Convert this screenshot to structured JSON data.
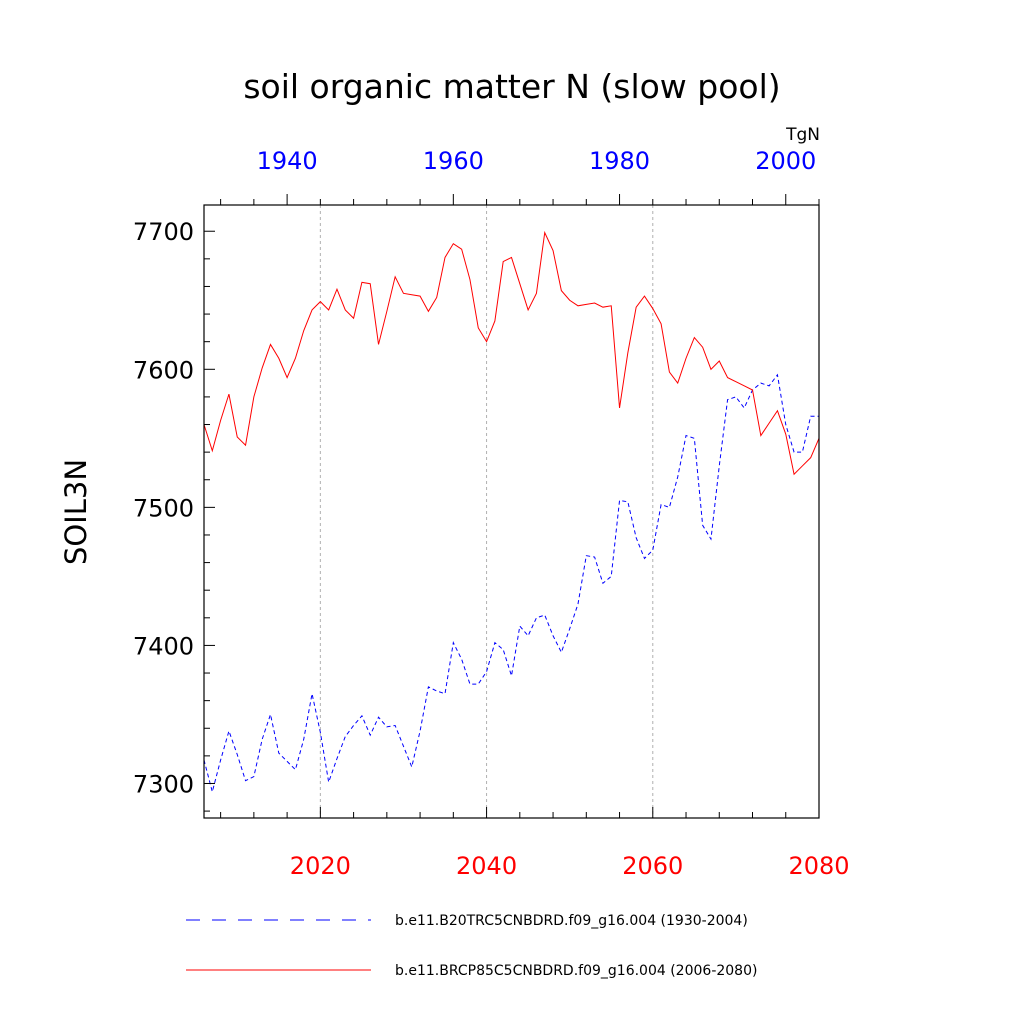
{
  "chart_data": {
    "type": "line",
    "title": "soil organic matter N (slow pool)",
    "ylabel": "SOIL3N",
    "units": "TgN",
    "ylim": [
      7275,
      7719
    ],
    "yticks": [
      7300,
      7400,
      7500,
      7600,
      7700
    ],
    "bottom_axis": {
      "range": [
        2006,
        2080
      ],
      "ticks": [
        2020,
        2040,
        2060,
        2080
      ],
      "color": "#ff0000"
    },
    "top_axis": {
      "range": [
        1930,
        2004
      ],
      "ticks": [
        1940,
        1960,
        1980,
        2000
      ],
      "color": "#0000ff"
    },
    "gridlines_x": [
      2020,
      2040,
      2060
    ],
    "series": [
      {
        "name": "b.e11.B20TRC5CNBDRD.f09_g16.004 (1930-2004)",
        "axis": "top",
        "color": "#0000ff",
        "dash": "dashed",
        "x": [
          1930,
          1931,
          1932,
          1933,
          1934,
          1935,
          1936,
          1937,
          1938,
          1939,
          1940,
          1941,
          1942,
          1943,
          1944,
          1945,
          1946,
          1947,
          1948,
          1949,
          1950,
          1951,
          1952,
          1953,
          1954,
          1955,
          1956,
          1957,
          1958,
          1959,
          1960,
          1961,
          1962,
          1963,
          1964,
          1965,
          1966,
          1967,
          1968,
          1969,
          1970,
          1971,
          1972,
          1973,
          1974,
          1975,
          1976,
          1977,
          1978,
          1979,
          1980,
          1981,
          1982,
          1983,
          1984,
          1985,
          1986,
          1987,
          1988,
          1989,
          1990,
          1991,
          1992,
          1993,
          1994,
          1995,
          1996,
          1997,
          1998,
          1999,
          2000,
          2001,
          2002,
          2003,
          2004
        ],
        "values": [
          7317,
          7294,
          7317,
          7338,
          7321,
          7302,
          7305,
          7332,
          7350,
          7322,
          7316,
          7310,
          7332,
          7365,
          7337,
          7301,
          7318,
          7334,
          7342,
          7349,
          7335,
          7348,
          7341,
          7342,
          7327,
          7312,
          7338,
          7370,
          7367,
          7365,
          7402,
          7390,
          7372,
          7372,
          7381,
          7402,
          7397,
          7378,
          7414,
          7407,
          7420,
          7422,
          7407,
          7395,
          7412,
          7430,
          7465,
          7464,
          7445,
          7450,
          7505,
          7504,
          7478,
          7463,
          7469,
          7502,
          7500,
          7522,
          7552,
          7550,
          7487,
          7477,
          7530,
          7578,
          7580,
          7572,
          7585,
          7590,
          7588,
          7596,
          7560,
          7540,
          7540,
          7566,
          7566
        ]
      },
      {
        "name": "b.e11.BRCP85C5CNBDRD.f09_g16.004 (2006-2080)",
        "axis": "bottom",
        "color": "#ff0000",
        "dash": "solid",
        "x": [
          2006,
          2007,
          2008,
          2009,
          2010,
          2011,
          2012,
          2013,
          2014,
          2015,
          2016,
          2017,
          2018,
          2019,
          2020,
          2021,
          2022,
          2023,
          2024,
          2025,
          2026,
          2027,
          2028,
          2029,
          2030,
          2031,
          2032,
          2033,
          2034,
          2035,
          2036,
          2037,
          2038,
          2039,
          2040,
          2041,
          2042,
          2043,
          2044,
          2045,
          2046,
          2047,
          2048,
          2049,
          2050,
          2051,
          2052,
          2053,
          2054,
          2055,
          2056,
          2057,
          2058,
          2059,
          2060,
          2061,
          2062,
          2063,
          2064,
          2065,
          2066,
          2067,
          2068,
          2069,
          2070,
          2071,
          2072,
          2073,
          2074,
          2075,
          2076,
          2077,
          2078,
          2079,
          2080
        ],
        "values": [
          7560,
          7541,
          7563,
          7582,
          7551,
          7545,
          7580,
          7601,
          7618,
          7608,
          7594,
          7608,
          7628,
          7643,
          7649,
          7643,
          7658,
          7643,
          7637,
          7663,
          7662,
          7618,
          7642,
          7667,
          7655,
          7654,
          7653,
          7642,
          7652,
          7681,
          7691,
          7687,
          7665,
          7630,
          7620,
          7635,
          7678,
          7681,
          7662,
          7643,
          7655,
          7699,
          7686,
          7657,
          7650,
          7646,
          7647,
          7648,
          7645,
          7646,
          7572,
          7612,
          7645,
          7653,
          7644,
          7633,
          7598,
          7590,
          7608,
          7623,
          7616,
          7600,
          7606,
          7594,
          7591,
          7588,
          7585,
          7552,
          7561,
          7570,
          7553,
          7524,
          7530,
          7536,
          7550
        ]
      }
    ]
  }
}
